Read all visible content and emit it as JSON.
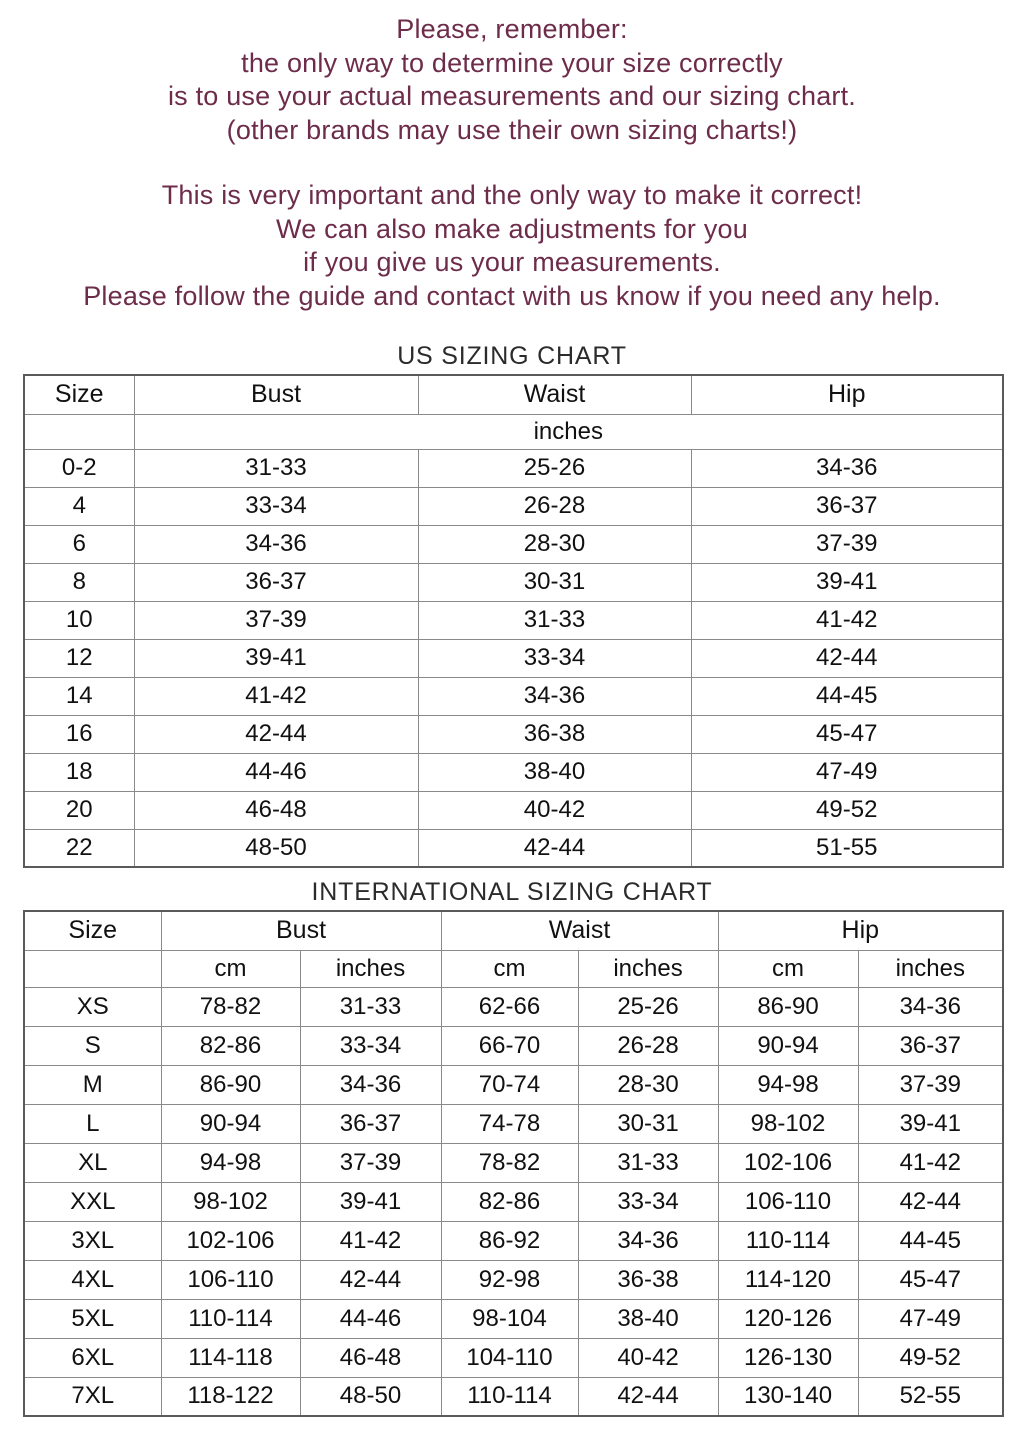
{
  "colors": {
    "intro_text": "#6d2c4a",
    "title_text": "#2b2b2b",
    "table_text": "#111111",
    "table_border": "#8a8a8a"
  },
  "intro": {
    "paragraph1": [
      "Please, remember:",
      "the only way to determine your size correctly",
      "is to use your actual measurements and our sizing chart.",
      "(other brands may use their own sizing charts!)"
    ],
    "paragraph2": [
      "This is very important and the only way to make it correct!",
      "We can also make adjustments for you",
      "if you give us your measurements.",
      "Please follow the guide and contact with us know if you need any help."
    ]
  },
  "us_chart": {
    "title": "US SIZING CHART",
    "columns": [
      "Size",
      "Bust",
      "Waist",
      "Hip"
    ],
    "unit_row": "inches",
    "rows": [
      [
        "0-2",
        "31-33",
        "25-26",
        "34-36"
      ],
      [
        "4",
        "33-34",
        "26-28",
        "36-37"
      ],
      [
        "6",
        "34-36",
        "28-30",
        "37-39"
      ],
      [
        "8",
        "36-37",
        "30-31",
        "39-41"
      ],
      [
        "10",
        "37-39",
        "31-33",
        "41-42"
      ],
      [
        "12",
        "39-41",
        "33-34",
        "42-44"
      ],
      [
        "14",
        "41-42",
        "34-36",
        "44-45"
      ],
      [
        "16",
        "42-44",
        "36-38",
        "45-47"
      ],
      [
        "18",
        "44-46",
        "38-40",
        "47-49"
      ],
      [
        "20",
        "46-48",
        "40-42",
        "49-52"
      ],
      [
        "22",
        "48-50",
        "42-44",
        "51-55"
      ]
    ]
  },
  "intl_chart": {
    "title": "INTERNATIONAL SIZING CHART",
    "columns": [
      "Size",
      "Bust",
      "Waist",
      "Hip"
    ],
    "unit_labels": [
      "cm",
      "inches",
      "cm",
      "inches",
      "cm",
      "inches"
    ],
    "rows": [
      [
        "XS",
        "78-82",
        "31-33",
        "62-66",
        "25-26",
        "86-90",
        "34-36"
      ],
      [
        "S",
        "82-86",
        "33-34",
        "66-70",
        "26-28",
        "90-94",
        "36-37"
      ],
      [
        "M",
        "86-90",
        "34-36",
        "70-74",
        "28-30",
        "94-98",
        "37-39"
      ],
      [
        "L",
        "90-94",
        "36-37",
        "74-78",
        "30-31",
        "98-102",
        "39-41"
      ],
      [
        "XL",
        "94-98",
        "37-39",
        "78-82",
        "31-33",
        "102-106",
        "41-42"
      ],
      [
        "XXL",
        "98-102",
        "39-41",
        "82-86",
        "33-34",
        "106-110",
        "42-44"
      ],
      [
        "3XL",
        "102-106",
        "41-42",
        "86-92",
        "34-36",
        "110-114",
        "44-45"
      ],
      [
        "4XL",
        "106-110",
        "42-44",
        "92-98",
        "36-38",
        "114-120",
        "45-47"
      ],
      [
        "5XL",
        "110-114",
        "44-46",
        "98-104",
        "38-40",
        "120-126",
        "47-49"
      ],
      [
        "6XL",
        "114-118",
        "46-48",
        "104-110",
        "40-42",
        "126-130",
        "49-52"
      ],
      [
        "7XL",
        "118-122",
        "48-50",
        "110-114",
        "42-44",
        "130-140",
        "52-55"
      ]
    ]
  }
}
